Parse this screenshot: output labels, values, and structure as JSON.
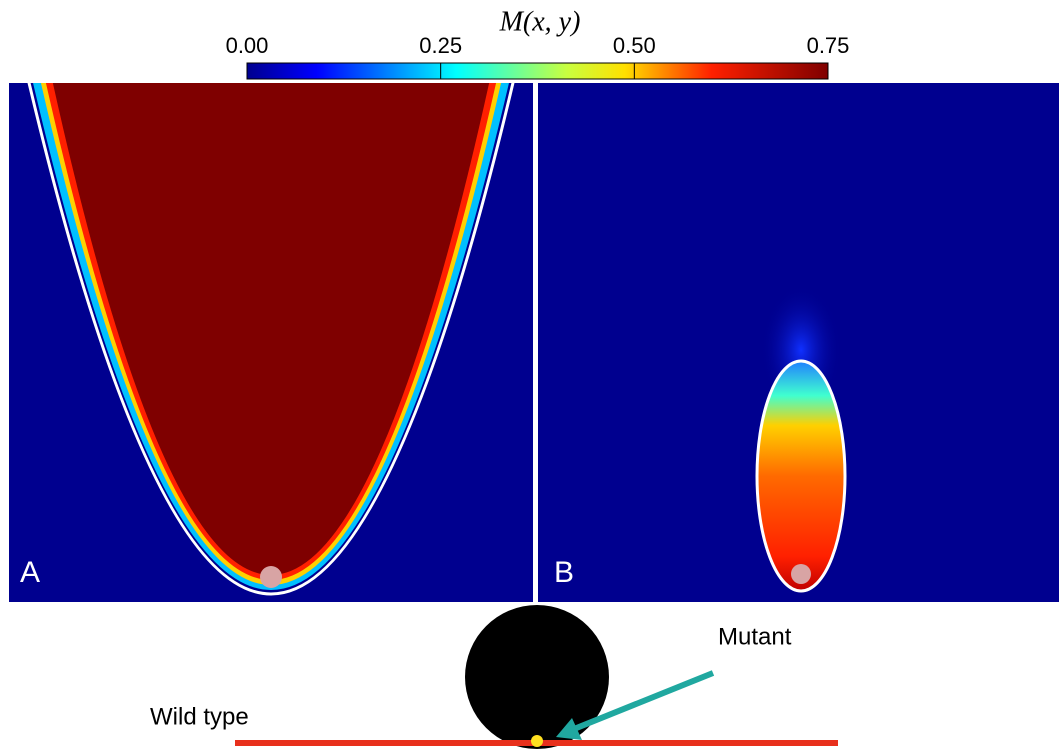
{
  "chart_data": {
    "type": "heatmap",
    "colorbar": {
      "title": "M(x, y)",
      "clim": [
        0,
        0.75
      ],
      "ticks": [
        {
          "value": 0,
          "label": "0.00"
        },
        {
          "value": 0.25,
          "label": "0.25"
        },
        {
          "value": 0.5,
          "label": "0.50"
        },
        {
          "value": 0.75,
          "label": "0.75"
        }
      ]
    },
    "panels": [
      {
        "label": "A"
      },
      {
        "label": "B"
      }
    ],
    "annotations": [
      "Mutant",
      "Wild type"
    ]
  }
}
